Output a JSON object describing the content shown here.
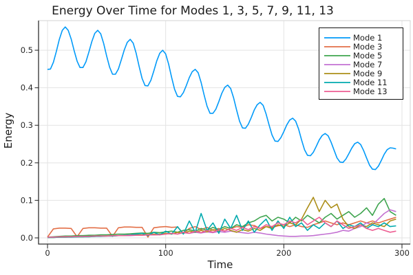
{
  "chart_data": {
    "type": "line",
    "title": "Energy Over Time for Modes 1, 3, 5, 7, 9, 11, 13",
    "xlabel": "Time",
    "ylabel": "Energy",
    "xlim": [
      -7.6,
      307.0
    ],
    "ylim": [
      -0.0165,
      0.5789
    ],
    "grid": true,
    "legend_position": "top-right",
    "x_tick_values": [
      0,
      100,
      200,
      300
    ],
    "x_tick_labels": [
      "0",
      "100",
      "200",
      "300"
    ],
    "y_tick_values": [
      0.0,
      0.1,
      0.2,
      0.3,
      0.4,
      0.5
    ],
    "y_tick_labels": [
      "0.0",
      "0.1",
      "0.2",
      "0.3",
      "0.4",
      "0.5"
    ],
    "series": [
      {
        "name": "Mode 1",
        "color": "#009AF9",
        "x_start": 0,
        "x_step": 2.5,
        "values": [
          0.449,
          0.45,
          0.468,
          0.497,
          0.529,
          0.553,
          0.562,
          0.553,
          0.53,
          0.499,
          0.471,
          0.454,
          0.454,
          0.469,
          0.495,
          0.523,
          0.545,
          0.553,
          0.544,
          0.518,
          0.485,
          0.455,
          0.436,
          0.436,
          0.45,
          0.475,
          0.501,
          0.521,
          0.529,
          0.519,
          0.492,
          0.457,
          0.425,
          0.406,
          0.405,
          0.42,
          0.445,
          0.472,
          0.492,
          0.5,
          0.49,
          0.463,
          0.428,
          0.396,
          0.377,
          0.376,
          0.387,
          0.406,
          0.427,
          0.443,
          0.449,
          0.44,
          0.414,
          0.381,
          0.351,
          0.332,
          0.332,
          0.343,
          0.363,
          0.385,
          0.401,
          0.407,
          0.398,
          0.373,
          0.341,
          0.311,
          0.293,
          0.292,
          0.303,
          0.321,
          0.341,
          0.355,
          0.361,
          0.353,
          0.33,
          0.301,
          0.274,
          0.258,
          0.257,
          0.267,
          0.283,
          0.301,
          0.314,
          0.319,
          0.311,
          0.29,
          0.261,
          0.235,
          0.22,
          0.219,
          0.228,
          0.244,
          0.261,
          0.273,
          0.278,
          0.272,
          0.255,
          0.234,
          0.213,
          0.202,
          0.201,
          0.21,
          0.224,
          0.239,
          0.251,
          0.255,
          0.249,
          0.233,
          0.213,
          0.194,
          0.183,
          0.182,
          0.191,
          0.206,
          0.223,
          0.235,
          0.24,
          0.239,
          0.237
        ]
      },
      {
        "name": "Mode 3",
        "color": "#E36F47",
        "x_start": 0,
        "x_step": 5,
        "values": [
          0.002,
          0.024,
          0.026,
          0.026,
          0.025,
          0.003,
          0.025,
          0.027,
          0.027,
          0.026,
          0.026,
          0.004,
          0.027,
          0.029,
          0.029,
          0.028,
          0.028,
          0.002,
          0.027,
          0.029,
          0.03,
          0.028,
          0.029,
          0.012,
          0.025,
          0.03,
          0.022,
          0.028,
          0.02,
          0.025,
          0.018,
          0.025,
          0.03,
          0.028,
          0.035,
          0.033,
          0.025,
          0.03,
          0.028,
          0.032,
          0.035,
          0.03,
          0.035,
          0.03,
          0.028,
          0.035,
          0.04,
          0.045,
          0.04,
          0.035,
          0.04,
          0.035,
          0.04,
          0.045,
          0.04,
          0.045,
          0.04,
          0.045,
          0.05,
          0.055
        ]
      },
      {
        "name": "Mode 5",
        "color": "#3EA44E",
        "x_start": 0,
        "x_step": 5,
        "values": [
          0.002,
          0.003,
          0.004,
          0.005,
          0.005,
          0.006,
          0.006,
          0.007,
          0.007,
          0.008,
          0.008,
          0.009,
          0.01,
          0.01,
          0.011,
          0.012,
          0.013,
          0.012,
          0.015,
          0.014,
          0.016,
          0.018,
          0.015,
          0.02,
          0.022,
          0.018,
          0.025,
          0.02,
          0.028,
          0.022,
          0.03,
          0.025,
          0.035,
          0.03,
          0.04,
          0.045,
          0.055,
          0.06,
          0.045,
          0.055,
          0.05,
          0.04,
          0.055,
          0.045,
          0.06,
          0.05,
          0.04,
          0.055,
          0.065,
          0.05,
          0.06,
          0.07,
          0.055,
          0.065,
          0.08,
          0.06,
          0.09,
          0.105,
          0.07,
          0.06
        ]
      },
      {
        "name": "Mode 7",
        "color": "#C371D2",
        "x_start": 0,
        "x_step": 5,
        "values": [
          0.001,
          0.002,
          0.002,
          0.003,
          0.003,
          0.003,
          0.004,
          0.004,
          0.004,
          0.005,
          0.005,
          0.005,
          0.006,
          0.006,
          0.006,
          0.007,
          0.007,
          0.008,
          0.008,
          0.009,
          0.01,
          0.012,
          0.01,
          0.014,
          0.012,
          0.015,
          0.013,
          0.016,
          0.014,
          0.017,
          0.015,
          0.018,
          0.016,
          0.014,
          0.012,
          0.015,
          0.013,
          0.01,
          0.008,
          0.006,
          0.005,
          0.004,
          0.004,
          0.005,
          0.005,
          0.006,
          0.008,
          0.01,
          0.012,
          0.015,
          0.02,
          0.018,
          0.025,
          0.03,
          0.04,
          0.035,
          0.05,
          0.065,
          0.075,
          0.07
        ]
      },
      {
        "name": "Mode 9",
        "color": "#AC8E18",
        "x_start": 0,
        "x_step": 5,
        "values": [
          0.001,
          0.001,
          0.002,
          0.002,
          0.003,
          0.003,
          0.003,
          0.004,
          0.004,
          0.005,
          0.005,
          0.006,
          0.006,
          0.007,
          0.007,
          0.008,
          0.008,
          0.009,
          0.01,
          0.01,
          0.012,
          0.01,
          0.015,
          0.012,
          0.018,
          0.015,
          0.02,
          0.016,
          0.022,
          0.018,
          0.025,
          0.02,
          0.015,
          0.022,
          0.018,
          0.025,
          0.02,
          0.03,
          0.025,
          0.035,
          0.03,
          0.04,
          0.035,
          0.05,
          0.08,
          0.108,
          0.07,
          0.1,
          0.08,
          0.09,
          0.05,
          0.03,
          0.025,
          0.035,
          0.03,
          0.04,
          0.035,
          0.03,
          0.045,
          0.05
        ]
      },
      {
        "name": "Mode 11",
        "color": "#00AAAE",
        "x_start": 0,
        "x_step": 5,
        "values": [
          0.001,
          0.001,
          0.002,
          0.002,
          0.002,
          0.003,
          0.003,
          0.003,
          0.004,
          0.004,
          0.005,
          0.005,
          0.006,
          0.007,
          0.008,
          0.01,
          0.012,
          0.006,
          0.015,
          0.008,
          0.018,
          0.01,
          0.03,
          0.01,
          0.045,
          0.015,
          0.065,
          0.02,
          0.04,
          0.012,
          0.05,
          0.025,
          0.06,
          0.02,
          0.045,
          0.015,
          0.035,
          0.05,
          0.02,
          0.045,
          0.025,
          0.055,
          0.03,
          0.04,
          0.02,
          0.035,
          0.025,
          0.04,
          0.03,
          0.045,
          0.025,
          0.035,
          0.03,
          0.04,
          0.025,
          0.035,
          0.03,
          0.04,
          0.03,
          0.032
        ]
      },
      {
        "name": "Mode 13",
        "color": "#ED5E92",
        "x_start": 0,
        "x_step": 5,
        "values": [
          0.002,
          0.002,
          0.003,
          0.003,
          0.003,
          0.004,
          0.004,
          0.004,
          0.005,
          0.005,
          0.005,
          0.006,
          0.006,
          0.006,
          0.007,
          0.007,
          0.007,
          0.008,
          0.008,
          0.008,
          0.01,
          0.012,
          0.01,
          0.015,
          0.012,
          0.018,
          0.014,
          0.02,
          0.015,
          0.022,
          0.018,
          0.025,
          0.02,
          0.028,
          0.022,
          0.03,
          0.025,
          0.035,
          0.03,
          0.04,
          0.035,
          0.045,
          0.04,
          0.05,
          0.035,
          0.045,
          0.055,
          0.04,
          0.03,
          0.045,
          0.035,
          0.025,
          0.03,
          0.035,
          0.025,
          0.02,
          0.025,
          0.02,
          0.015,
          0.018
        ]
      }
    ]
  }
}
